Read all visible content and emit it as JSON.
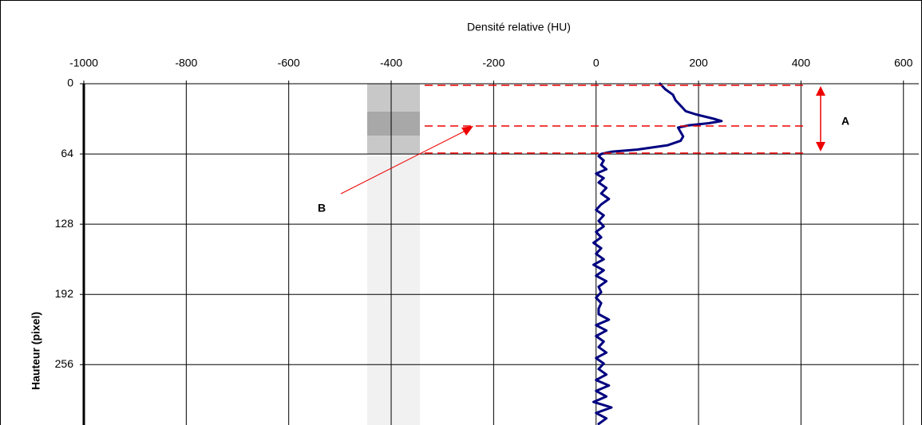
{
  "chart_data": {
    "type": "line",
    "xlabel": "Densité relative (HU)",
    "ylabel": "Hauteur (pixel)",
    "xlim": [
      -1000,
      630
    ],
    "xticks": [
      -1000,
      -800,
      -600,
      -400,
      -200,
      0,
      200,
      400,
      600
    ],
    "ylim": [
      0,
      311
    ],
    "yticks": [
      0,
      64,
      128,
      192,
      256
    ],
    "y_inverted": true,
    "grid": true,
    "color": "#000080",
    "y": [
      0,
      5,
      10,
      15,
      20,
      25,
      28,
      32,
      34,
      36,
      38,
      40,
      44,
      48,
      52,
      56,
      60,
      62,
      64,
      66,
      70,
      74,
      78,
      82,
      86,
      90,
      95,
      100,
      105,
      110,
      115,
      120,
      125,
      130,
      135,
      140,
      145,
      150,
      155,
      160,
      165,
      170,
      175,
      180,
      185,
      190,
      195,
      200,
      205,
      210,
      215,
      220,
      225,
      230,
      235,
      240,
      245,
      250,
      255,
      260,
      265,
      270,
      275,
      280,
      285,
      290,
      295,
      300,
      305,
      310
    ],
    "values": [
      125,
      135,
      150,
      155,
      165,
      175,
      195,
      230,
      245,
      220,
      180,
      160,
      165,
      170,
      165,
      140,
      80,
      30,
      10,
      5,
      15,
      10,
      20,
      0,
      15,
      5,
      20,
      10,
      25,
      10,
      0,
      15,
      5,
      15,
      0,
      10,
      -5,
      10,
      0,
      15,
      -5,
      15,
      0,
      20,
      5,
      10,
      0,
      10,
      5,
      5,
      25,
      0,
      20,
      0,
      15,
      5,
      20,
      0,
      15,
      5,
      20,
      0,
      25,
      0,
      20,
      -5,
      30,
      0,
      20,
      5
    ],
    "annotations": [
      "A",
      "B"
    ]
  }
}
